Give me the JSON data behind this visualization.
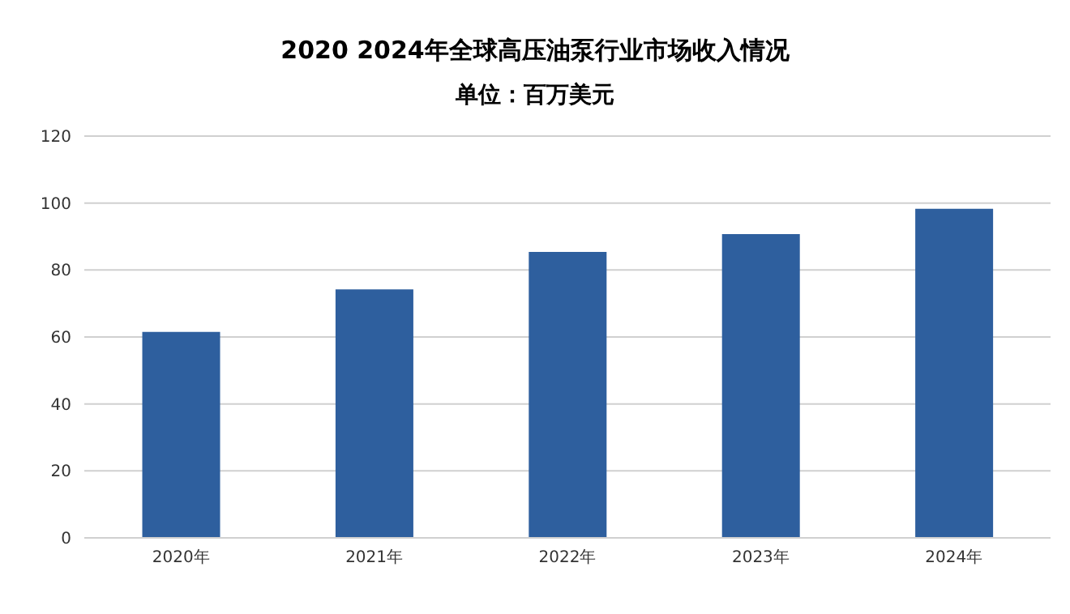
{
  "chart_data": {
    "type": "bar",
    "title": "2020 2024年全球高压油泵行业市场收入情况",
    "subtitle": "单位：百万美元",
    "categories": [
      "2020年",
      "2021年",
      "2022年",
      "2023年",
      "2024年"
    ],
    "values": [
      61.5,
      74.2,
      85.4,
      90.7,
      98.3
    ],
    "color": "#2e5f9e",
    "ylim": [
      0,
      120
    ],
    "yticks": [
      0,
      20,
      40,
      60,
      80,
      100,
      120
    ],
    "grid": "y"
  }
}
